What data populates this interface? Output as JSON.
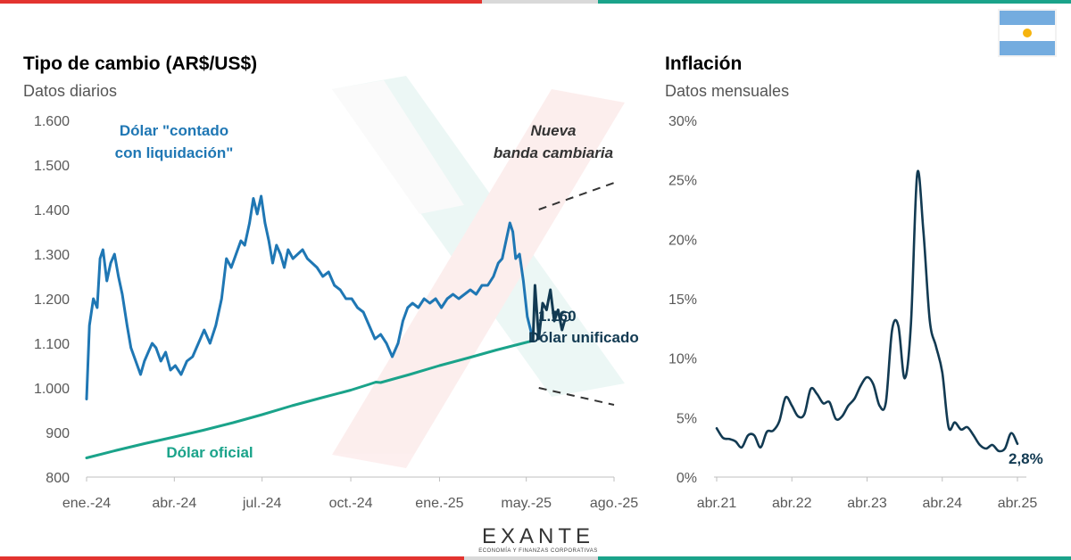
{
  "left_chart": {
    "title": "Tipo de cambio (AR$/US$)",
    "subtitle": "Datos diarios",
    "chart_data": {
      "type": "line",
      "title": "Tipo de cambio (AR$/US$)",
      "subtitle": "Datos diarios",
      "x_tick_labels": [
        "ene.-24",
        "abr.-24",
        "jul.-24",
        "oct.-24",
        "ene.-25",
        "may.-25",
        "ago.-25"
      ],
      "x_tick_dates": [
        "2024-01-01",
        "2024-04-01",
        "2024-07-01",
        "2024-10-01",
        "2025-01-01",
        "2025-04-01",
        "2025-07-01"
      ],
      "y_tick_labels": [
        "800",
        "900",
        "1.000",
        "1.100",
        "1.200",
        "1.300",
        "1.400",
        "1.500",
        "1.600"
      ],
      "ylim": [
        800,
        1600
      ],
      "xlim": [
        "2024-01-01",
        "2025-07-01"
      ],
      "grid": false,
      "series": [
        {
          "name": "Dólar \"contado con liquidación\"",
          "color": "#1f77b4",
          "points": [
            [
              "2024-01-01",
              975
            ],
            [
              "2024-01-04",
              1140
            ],
            [
              "2024-01-08",
              1200
            ],
            [
              "2024-01-12",
              1180
            ],
            [
              "2024-01-15",
              1290
            ],
            [
              "2024-01-18",
              1310
            ],
            [
              "2024-01-22",
              1240
            ],
            [
              "2024-01-26",
              1280
            ],
            [
              "2024-01-30",
              1300
            ],
            [
              "2024-02-03",
              1250
            ],
            [
              "2024-02-07",
              1210
            ],
            [
              "2024-02-12",
              1140
            ],
            [
              "2024-02-16",
              1090
            ],
            [
              "2024-02-21",
              1060
            ],
            [
              "2024-02-26",
              1030
            ],
            [
              "2024-03-01",
              1060
            ],
            [
              "2024-03-05",
              1080
            ],
            [
              "2024-03-09",
              1100
            ],
            [
              "2024-03-13",
              1090
            ],
            [
              "2024-03-18",
              1060
            ],
            [
              "2024-03-23",
              1080
            ],
            [
              "2024-03-28",
              1040
            ],
            [
              "2024-04-02",
              1050
            ],
            [
              "2024-04-08",
              1030
            ],
            [
              "2024-04-14",
              1060
            ],
            [
              "2024-04-20",
              1070
            ],
            [
              "2024-04-26",
              1100
            ],
            [
              "2024-05-02",
              1130
            ],
            [
              "2024-05-08",
              1100
            ],
            [
              "2024-05-14",
              1140
            ],
            [
              "2024-05-20",
              1200
            ],
            [
              "2024-05-25",
              1290
            ],
            [
              "2024-05-30",
              1270
            ],
            [
              "2024-06-04",
              1300
            ],
            [
              "2024-06-09",
              1330
            ],
            [
              "2024-06-13",
              1320
            ],
            [
              "2024-06-18",
              1370
            ],
            [
              "2024-06-22",
              1425
            ],
            [
              "2024-06-26",
              1390
            ],
            [
              "2024-06-30",
              1430
            ],
            [
              "2024-07-04",
              1370
            ],
            [
              "2024-07-08",
              1330
            ],
            [
              "2024-07-12",
              1280
            ],
            [
              "2024-07-16",
              1320
            ],
            [
              "2024-07-20",
              1300
            ],
            [
              "2024-07-24",
              1270
            ],
            [
              "2024-07-28",
              1310
            ],
            [
              "2024-08-02",
              1290
            ],
            [
              "2024-08-07",
              1300
            ],
            [
              "2024-08-12",
              1310
            ],
            [
              "2024-08-17",
              1290
            ],
            [
              "2024-08-22",
              1280
            ],
            [
              "2024-08-27",
              1270
            ],
            [
              "2024-09-02",
              1250
            ],
            [
              "2024-09-08",
              1260
            ],
            [
              "2024-09-14",
              1230
            ],
            [
              "2024-09-20",
              1220
            ],
            [
              "2024-09-26",
              1200
            ],
            [
              "2024-10-02",
              1200
            ],
            [
              "2024-10-08",
              1180
            ],
            [
              "2024-10-14",
              1170
            ],
            [
              "2024-10-20",
              1140
            ],
            [
              "2024-10-26",
              1110
            ],
            [
              "2024-11-01",
              1120
            ],
            [
              "2024-11-07",
              1100
            ],
            [
              "2024-11-13",
              1070
            ],
            [
              "2024-11-19",
              1100
            ],
            [
              "2024-11-24",
              1150
            ],
            [
              "2024-11-29",
              1180
            ],
            [
              "2024-12-04",
              1190
            ],
            [
              "2024-12-10",
              1180
            ],
            [
              "2024-12-16",
              1200
            ],
            [
              "2024-12-22",
              1190
            ],
            [
              "2024-12-28",
              1200
            ],
            [
              "2025-01-03",
              1180
            ],
            [
              "2025-01-09",
              1200
            ],
            [
              "2025-01-15",
              1210
            ],
            [
              "2025-01-21",
              1200
            ],
            [
              "2025-01-27",
              1210
            ],
            [
              "2025-02-02",
              1220
            ],
            [
              "2025-02-08",
              1210
            ],
            [
              "2025-02-14",
              1230
            ],
            [
              "2025-02-20",
              1230
            ],
            [
              "2025-02-26",
              1250
            ],
            [
              "2025-03-03",
              1280
            ],
            [
              "2025-03-07",
              1290
            ],
            [
              "2025-03-11",
              1330
            ],
            [
              "2025-03-15",
              1370
            ],
            [
              "2025-03-18",
              1350
            ],
            [
              "2025-03-21",
              1290
            ],
            [
              "2025-03-25",
              1300
            ],
            [
              "2025-03-29",
              1240
            ],
            [
              "2025-04-02",
              1160
            ],
            [
              "2025-04-08",
              1108
            ]
          ]
        },
        {
          "name": "Dólar oficial",
          "color": "#1aa38a",
          "points": [
            [
              "2024-01-01",
              843
            ],
            [
              "2024-02-01",
              860
            ],
            [
              "2024-03-01",
              875
            ],
            [
              "2024-04-01",
              890
            ],
            [
              "2024-05-01",
              905
            ],
            [
              "2024-06-01",
              922
            ],
            [
              "2024-07-01",
              940
            ],
            [
              "2024-08-01",
              960
            ],
            [
              "2024-09-01",
              978
            ],
            [
              "2024-10-01",
              995
            ],
            [
              "2024-10-20",
              1008
            ],
            [
              "2024-10-27",
              1013
            ],
            [
              "2024-11-01",
              1012
            ],
            [
              "2024-12-01",
              1030
            ],
            [
              "2025-01-01",
              1050
            ],
            [
              "2025-02-01",
              1068
            ],
            [
              "2025-03-01",
              1085
            ],
            [
              "2025-04-08",
              1106
            ]
          ]
        },
        {
          "name": "Dólar unificado",
          "color": "#123a52",
          "points": [
            [
              "2025-04-08",
              1106
            ],
            [
              "2025-04-10",
              1230
            ],
            [
              "2025-04-14",
              1110
            ],
            [
              "2025-04-18",
              1190
            ],
            [
              "2025-04-22",
              1175
            ],
            [
              "2025-04-26",
              1220
            ],
            [
              "2025-04-30",
              1150
            ],
            [
              "2025-05-04",
              1175
            ],
            [
              "2025-05-08",
              1130
            ],
            [
              "2025-05-12",
              1160
            ]
          ]
        }
      ],
      "bands": [
        {
          "points": [
            [
              "2025-04-14",
              1400
            ],
            [
              "2025-07-01",
              1460
            ]
          ]
        },
        {
          "points": [
            [
              "2025-04-14",
              1000
            ],
            [
              "2025-07-01",
              962
            ]
          ]
        }
      ],
      "annotations": [
        {
          "text_lines": [
            "Dólar \"contado",
            "con liquidación\""
          ],
          "color": "#1f77b4"
        },
        {
          "text_lines": [
            "Nueva",
            "banda cambiaria"
          ],
          "color": "#333333"
        },
        {
          "text": "1.160",
          "color": "#123a52"
        },
        {
          "text": "Dólar unificado",
          "color": "#123a52"
        },
        {
          "text": "Dólar oficial",
          "color": "#1aa38a"
        }
      ],
      "last_value_marker": {
        "date": "2025-05-12",
        "value": 1160
      }
    }
  },
  "right_chart": {
    "title": "Inflación",
    "subtitle": "Datos mensuales",
    "chart_data": {
      "type": "line",
      "title": "Inflación",
      "subtitle": "Datos mensuales",
      "x_tick_labels": [
        "abr.21",
        "abr.22",
        "abr.23",
        "abr.24",
        "abr.25"
      ],
      "x_tick_dates": [
        "2021-04",
        "2022-04",
        "2023-04",
        "2024-04",
        "2025-04"
      ],
      "y_tick_labels": [
        "0%",
        "5%",
        "10%",
        "15%",
        "20%",
        "25%",
        "30%"
      ],
      "ylim": [
        0,
        30
      ],
      "grid": false,
      "series": [
        {
          "name": "",
          "color": "#123a52",
          "points": [
            [
              "2021-04",
              4.1
            ],
            [
              "2021-05",
              3.3
            ],
            [
              "2021-06",
              3.2
            ],
            [
              "2021-07",
              3.0
            ],
            [
              "2021-08",
              2.5
            ],
            [
              "2021-09",
              3.5
            ],
            [
              "2021-10",
              3.5
            ],
            [
              "2021-11",
              2.5
            ],
            [
              "2021-12",
              3.8
            ],
            [
              "2022-01",
              3.9
            ],
            [
              "2022-02",
              4.7
            ],
            [
              "2022-03",
              6.7
            ],
            [
              "2022-04",
              6.0
            ],
            [
              "2022-05",
              5.1
            ],
            [
              "2022-06",
              5.3
            ],
            [
              "2022-07",
              7.4
            ],
            [
              "2022-08",
              7.0
            ],
            [
              "2022-09",
              6.2
            ],
            [
              "2022-10",
              6.3
            ],
            [
              "2022-11",
              4.9
            ],
            [
              "2022-12",
              5.1
            ],
            [
              "2023-01",
              6.0
            ],
            [
              "2023-02",
              6.6
            ],
            [
              "2023-03",
              7.7
            ],
            [
              "2023-04",
              8.4
            ],
            [
              "2023-05",
              7.8
            ],
            [
              "2023-06",
              6.0
            ],
            [
              "2023-07",
              6.3
            ],
            [
              "2023-08",
              12.4
            ],
            [
              "2023-09",
              12.7
            ],
            [
              "2023-10",
              8.3
            ],
            [
              "2023-11",
              12.8
            ],
            [
              "2023-12",
              25.5
            ],
            [
              "2024-01",
              20.6
            ],
            [
              "2024-02",
              13.2
            ],
            [
              "2024-03",
              11.0
            ],
            [
              "2024-04",
              8.8
            ],
            [
              "2024-05",
              4.2
            ],
            [
              "2024-06",
              4.6
            ],
            [
              "2024-07",
              4.0
            ],
            [
              "2024-08",
              4.2
            ],
            [
              "2024-09",
              3.5
            ],
            [
              "2024-10",
              2.7
            ],
            [
              "2024-11",
              2.4
            ],
            [
              "2024-12",
              2.7
            ],
            [
              "2025-01",
              2.2
            ],
            [
              "2025-02",
              2.4
            ],
            [
              "2025-03",
              3.7
            ],
            [
              "2025-04",
              2.8
            ]
          ]
        }
      ],
      "annotations": [
        {
          "text": "2,8%",
          "color": "#123a52"
        }
      ]
    }
  },
  "brand": {
    "logo_text": "EXANTE",
    "tagline": "ECONOMÍA Y FINANZAS CORPORATIVAS"
  },
  "colors": {
    "blue": "#1f77b4",
    "teal": "#1aa38a",
    "navy": "#123a52",
    "red_accent": "#e3342f"
  }
}
